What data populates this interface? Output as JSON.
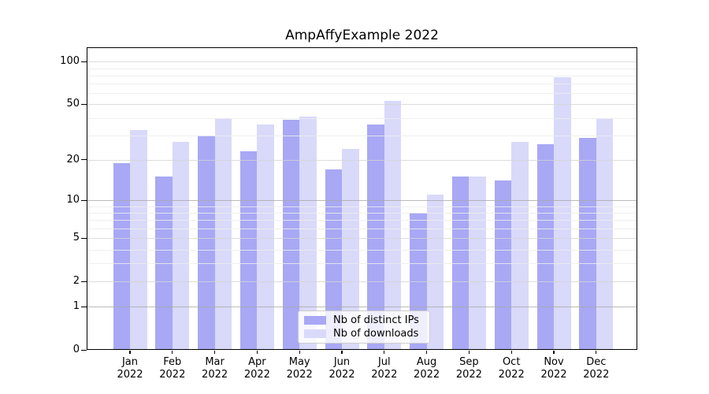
{
  "title": "AmpAffyExample 2022",
  "chart_data": {
    "type": "bar",
    "title": "AmpAffyExample 2022",
    "xlabel": "",
    "ylabel": "",
    "categories": [
      "Jan",
      "Feb",
      "Mar",
      "Apr",
      "May",
      "Jun",
      "Jul",
      "Aug",
      "Sep",
      "Oct",
      "Nov",
      "Dec"
    ],
    "year_label": "2022",
    "series": [
      {
        "name": "Nb of distinct IPs",
        "color": "#a8a8f5",
        "values": [
          19,
          15,
          30,
          23,
          39,
          17,
          36,
          8,
          15,
          14,
          26,
          29
        ]
      },
      {
        "name": "Nb of downloads",
        "color": "#d9d9fa",
        "values": [
          33,
          27,
          40,
          36,
          41,
          24,
          53,
          11,
          15,
          27,
          78,
          40
        ]
      }
    ],
    "y_scale": "log10(x+1)",
    "ylim": [
      0,
      126
    ],
    "y_major_ticks": [
      100,
      50,
      20,
      10,
      5,
      2,
      1,
      0
    ],
    "y_tick_labels": [
      "100",
      "50",
      "20",
      "10",
      "5",
      "2",
      "1",
      "0"
    ],
    "y_minor_gridlines": [
      90,
      80,
      70,
      60,
      40,
      30,
      9,
      8,
      7,
      6,
      4,
      3
    ],
    "y_dark_gridlines": [
      10,
      1
    ],
    "grid": true,
    "legend_position": "lower center"
  },
  "legend": {
    "items": [
      {
        "label": "Nb of distinct IPs"
      },
      {
        "label": "Nb of downloads"
      }
    ]
  },
  "colors": {
    "bar_distinct_ips": "#a8a8f5",
    "bar_downloads": "#d9d9fa",
    "grid_dark": "#a9a9a9",
    "grid_medium": "#d4d4d4",
    "grid_minor": "#ececec",
    "axis": "#000000",
    "background": "#ffffff"
  }
}
